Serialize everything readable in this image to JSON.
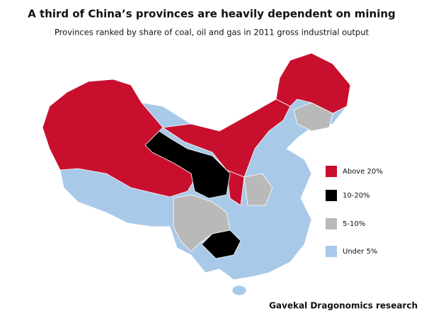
{
  "title": "A third of China’s provinces are heavily dependent on mining",
  "subtitle": "Provinces ranked by share of coal, oil and gas in 2011 gross industrial output",
  "legend": [
    {
      "label": "Above 20%",
      "color": "#c8102e"
    },
    {
      "label": "10-20%",
      "color": "#000000"
    },
    {
      "label": "5-10%",
      "color": "#b9b9b9"
    },
    {
      "label": "Under 5%",
      "color": "#a9c9e8"
    }
  ],
  "source": "Gavekal Dragonomics research"
}
